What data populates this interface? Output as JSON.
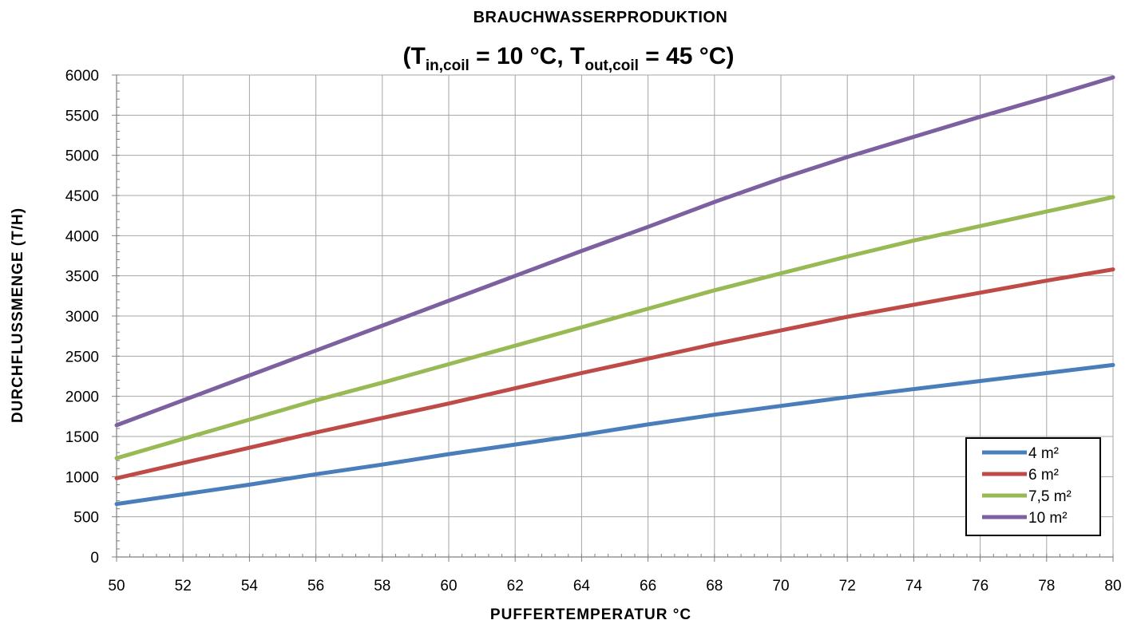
{
  "chart_data": {
    "type": "line",
    "title": "BRAUCHWASSERPRODUKTION",
    "subtitle": {
      "prefix": "(T",
      "sub1": "in,coil",
      "mid": " = 10 °C, T",
      "sub2": "out,coil",
      "suffix": " = 45 °C)"
    },
    "xlabel": "PUFFERTEMPERATUR °C",
    "ylabel": "DURCHFLUSSMENGE (T/H)",
    "xlim": [
      50,
      80
    ],
    "ylim": [
      0,
      6000
    ],
    "xticks": [
      50,
      52,
      54,
      56,
      58,
      60,
      62,
      64,
      66,
      68,
      70,
      72,
      74,
      76,
      78,
      80
    ],
    "yticks": [
      0,
      500,
      1000,
      1500,
      2000,
      2500,
      3000,
      3500,
      4000,
      4500,
      5000,
      5500,
      6000
    ],
    "grid": true,
    "legend_position": "bottom-right",
    "x": [
      50,
      52,
      54,
      56,
      58,
      60,
      62,
      64,
      66,
      68,
      70,
      72,
      74,
      76,
      78,
      80
    ],
    "series": [
      {
        "name": "4 m²",
        "color": "#4a7ebb",
        "values": [
          660,
          780,
          900,
          1030,
          1150,
          1280,
          1400,
          1520,
          1650,
          1770,
          1880,
          1990,
          2090,
          2190,
          2290,
          2390
        ]
      },
      {
        "name": "6 m²",
        "color": "#be4b48",
        "values": [
          980,
          1170,
          1360,
          1550,
          1730,
          1910,
          2100,
          2290,
          2470,
          2650,
          2820,
          2990,
          3140,
          3290,
          3440,
          3580
        ]
      },
      {
        "name": "7,5 m²",
        "color": "#98b954",
        "values": [
          1230,
          1470,
          1710,
          1950,
          2170,
          2400,
          2630,
          2860,
          3090,
          3320,
          3530,
          3740,
          3940,
          4120,
          4300,
          4480
        ]
      },
      {
        "name": "10 m²",
        "color": "#7d60a0",
        "values": [
          1640,
          1950,
          2260,
          2570,
          2880,
          3190,
          3500,
          3810,
          4110,
          4420,
          4710,
          4980,
          5230,
          5480,
          5720,
          5970
        ]
      }
    ]
  }
}
